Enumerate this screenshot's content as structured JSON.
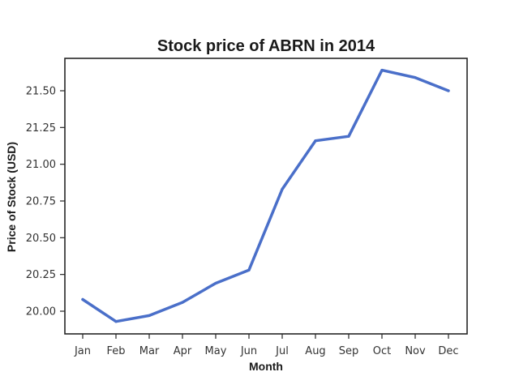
{
  "chart_data": {
    "type": "line",
    "title": "Stock price of ABRN in 2014",
    "xlabel": "Month",
    "ylabel": "Price of Stock (USD)",
    "categories": [
      "Jan",
      "Feb",
      "Mar",
      "Apr",
      "May",
      "Jun",
      "Jul",
      "Aug",
      "Sep",
      "Oct",
      "Nov",
      "Dec"
    ],
    "series": [
      {
        "values": [
          20.08,
          19.93,
          19.97,
          20.06,
          20.19,
          20.28,
          20.83,
          21.16,
          21.19,
          21.64,
          21.59,
          21.5
        ]
      }
    ],
    "yticks": [
      "20.00",
      "20.25",
      "20.50",
      "20.75",
      "21.00",
      "21.25",
      "21.50"
    ],
    "ylim": [
      19.85,
      21.73
    ],
    "grid": false,
    "line_color": "#4a6fc9",
    "axis_color": "#262626"
  }
}
